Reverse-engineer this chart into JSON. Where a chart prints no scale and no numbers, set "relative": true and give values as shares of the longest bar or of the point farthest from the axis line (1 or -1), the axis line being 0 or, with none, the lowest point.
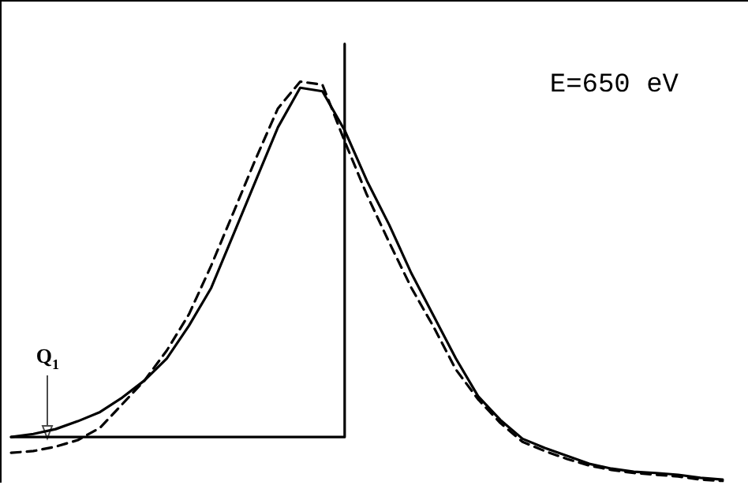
{
  "chart_data": {
    "type": "line",
    "relative": true,
    "marker": "none",
    "categories": [
      null,
      null,
      null,
      null,
      null,
      null,
      null,
      null,
      null,
      null,
      null,
      null,
      null,
      null,
      null,
      null,
      null,
      null,
      null,
      null,
      null,
      null,
      null,
      null,
      null,
      null,
      null,
      null,
      null,
      null,
      null,
      null,
      null
    ],
    "series": [
      {
        "color": "#000000",
        "line_style": "solid",
        "values": [
          0.104,
          0.111,
          0.122,
          0.14,
          0.161,
          0.194,
          0.233,
          0.283,
          0.358,
          0.444,
          0.566,
          0.688,
          0.81,
          0.9,
          0.892,
          0.803,
          0.688,
          0.588,
          0.477,
          0.38,
          0.283,
          0.197,
          0.143,
          0.1,
          0.079,
          0.061,
          0.043,
          0.032,
          0.025,
          0.022,
          0.018,
          0.011,
          0.007
        ]
      },
      {
        "color": "#000000",
        "line_style": "dashed",
        "values": [
          0.068,
          0.072,
          0.082,
          0.097,
          0.125,
          0.179,
          0.233,
          0.301,
          0.384,
          0.495,
          0.616,
          0.738,
          0.853,
          0.914,
          0.907,
          0.778,
          0.656,
          0.548,
          0.444,
          0.355,
          0.258,
          0.19,
          0.136,
          0.093,
          0.072,
          0.054,
          0.039,
          0.029,
          0.022,
          0.018,
          0.014,
          0.007,
          0.004
        ]
      },
      {
        "type": "step",
        "color": "#000000",
        "line_style": "solid",
        "values": [
          0.104,
          0.104,
          0.104,
          0.104,
          0.104,
          0.104,
          0.104,
          0.104,
          0.104,
          0.104,
          0.104,
          0.104,
          0.104,
          0.104,
          0.104,
          1.0,
          null,
          null,
          null,
          null,
          null,
          null,
          null,
          null,
          null,
          null,
          null,
          null,
          null,
          null,
          null,
          null,
          null
        ]
      }
    ],
    "annotations": [
      "E=650 eV",
      "Q$_{1}$"
    ]
  }
}
